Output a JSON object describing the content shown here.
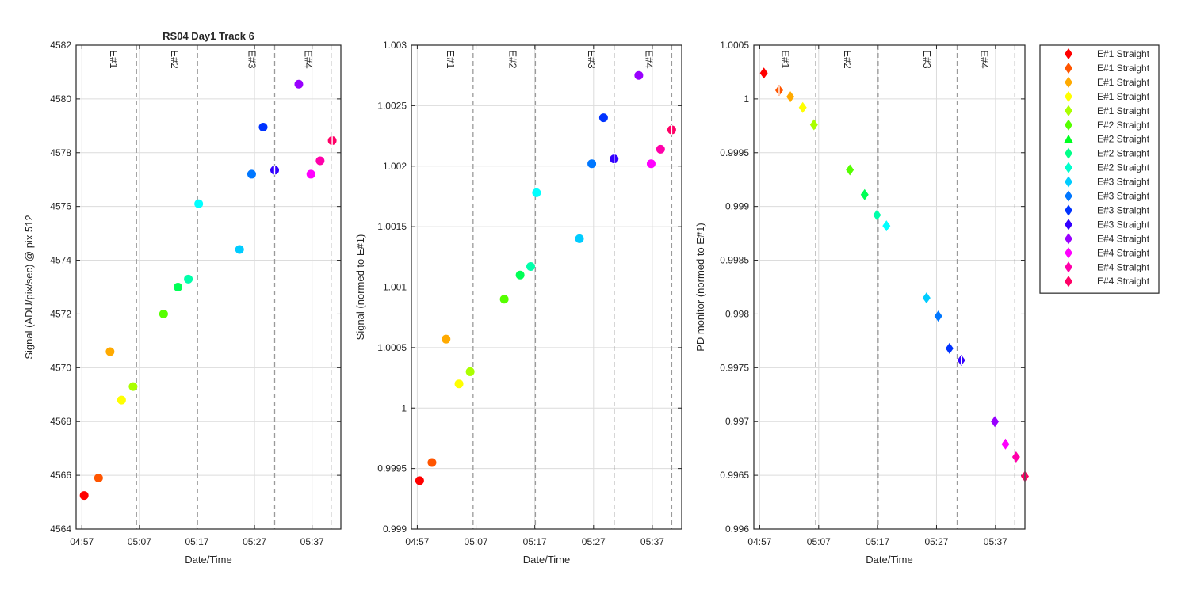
{
  "figure_title": "RS04 Day1 Track 6",
  "chart_data": [
    {
      "type": "scatter",
      "title": "RS04 Day1 Track 6",
      "xlabel": "Date/Time",
      "ylabel": "Signal (ADU/pix/sec) @ pix 512",
      "xlim": [
        "04:56",
        "05:42"
      ],
      "ylim": [
        4564,
        4582
      ],
      "xticks": [
        "04:57",
        "05:07",
        "05:17",
        "05:27",
        "05:37"
      ],
      "yticks": [
        "4564",
        "4566",
        "4568",
        "4570",
        "4572",
        "4574",
        "4576",
        "4578",
        "4580",
        "4582"
      ],
      "ytick_values": [
        4564,
        4566,
        4568,
        4570,
        4572,
        4574,
        4576,
        4578,
        4580,
        4582
      ],
      "grid": true,
      "marker": "circle",
      "event_lines": [
        {
          "label": "E#1",
          "time": "05:06.5",
          "line_time": "05:06.5"
        },
        {
          "label": "E#2",
          "time": "05:17.1",
          "line_time": "05:17.1"
        },
        {
          "label": "E#3",
          "time": "05:30.5",
          "line_time": "05:30.5"
        },
        {
          "label": "E#4",
          "time": "05:40.3",
          "line_time": "05:40.3"
        }
      ],
      "points": [
        {
          "x": "04:57.4",
          "y": 4565.25,
          "color": "#ff0000"
        },
        {
          "x": "04:59.9",
          "y": 4565.9,
          "color": "#ff5500"
        },
        {
          "x": "05:01.9",
          "y": 4570.6,
          "color": "#ffaa00"
        },
        {
          "x": "05:03.9",
          "y": 4568.8,
          "color": "#ffff00"
        },
        {
          "x": "05:05.9",
          "y": 4569.3,
          "color": "#aaff00"
        },
        {
          "x": "05:11.2",
          "y": 4572.0,
          "color": "#55ff00"
        },
        {
          "x": "05:13.7",
          "y": 4573.0,
          "color": "#00ff55"
        },
        {
          "x": "05:15.5",
          "y": 4573.3,
          "color": "#00ffaa"
        },
        {
          "x": "05:17.3",
          "y": 4576.1,
          "color": "#00ffff"
        },
        {
          "x": "05:24.4",
          "y": 4574.4,
          "color": "#00ccff"
        },
        {
          "x": "05:26.5",
          "y": 4577.2,
          "color": "#0077ff"
        },
        {
          "x": "05:28.5",
          "y": 4578.95,
          "color": "#0033ff"
        },
        {
          "x": "05:30.5",
          "y": 4577.35,
          "color": "#3300ff",
          "half": true
        },
        {
          "x": "05:34.7",
          "y": 4580.55,
          "color": "#9900ff"
        },
        {
          "x": "05:36.8",
          "y": 4577.2,
          "color": "#ff00ff"
        },
        {
          "x": "05:38.4",
          "y": 4577.7,
          "color": "#ff00aa"
        },
        {
          "x": "05:40.5",
          "y": 4578.45,
          "color": "#ff0066",
          "half": true
        }
      ]
    },
    {
      "type": "scatter",
      "title": "",
      "xlabel": "Date/Time",
      "ylabel": "Signal (normed to E#1)",
      "xlim": [
        "04:56",
        "05:42"
      ],
      "ylim": [
        0.999,
        1.003
      ],
      "xticks": [
        "04:57",
        "05:07",
        "05:17",
        "05:27",
        "05:37"
      ],
      "yticks": [
        "0.999",
        "0.9995",
        "1",
        "1.0005",
        "1.001",
        "1.0015",
        "1.002",
        "1.0025",
        "1.003"
      ],
      "ytick_values": [
        0.999,
        0.9995,
        1.0,
        1.0005,
        1.001,
        1.0015,
        1.002,
        1.0025,
        1.003
      ],
      "grid": true,
      "marker": "circle",
      "event_lines": [
        {
          "label": "E#1",
          "time": "05:06.5",
          "line_time": "05:06.5"
        },
        {
          "label": "E#2",
          "time": "05:17.1",
          "line_time": "05:17.1"
        },
        {
          "label": "E#3",
          "time": "05:30.5",
          "line_time": "05:30.5"
        },
        {
          "label": "E#4",
          "time": "05:40.3",
          "line_time": "05:40.3"
        }
      ],
      "points": [
        {
          "x": "04:57.4",
          "y": 0.9994,
          "color": "#ff0000"
        },
        {
          "x": "04:59.5",
          "y": 0.99955,
          "color": "#ff5500"
        },
        {
          "x": "05:01.9",
          "y": 1.00057,
          "color": "#ffaa00"
        },
        {
          "x": "05:04.1",
          "y": 1.0002,
          "color": "#ffff00"
        },
        {
          "x": "05:06.0",
          "y": 1.0003,
          "color": "#aaff00"
        },
        {
          "x": "05:11.8",
          "y": 1.0009,
          "color": "#55ff00"
        },
        {
          "x": "05:14.5",
          "y": 1.0011,
          "color": "#00ff55"
        },
        {
          "x": "05:16.3",
          "y": 1.00117,
          "color": "#00ffaa"
        },
        {
          "x": "05:17.3",
          "y": 1.00178,
          "color": "#00ffff"
        },
        {
          "x": "05:24.6",
          "y": 1.0014,
          "color": "#00ccff"
        },
        {
          "x": "05:26.7",
          "y": 1.00202,
          "color": "#0077ff"
        },
        {
          "x": "05:28.7",
          "y": 1.0024,
          "color": "#0033ff"
        },
        {
          "x": "05:30.5",
          "y": 1.00206,
          "color": "#3300ff",
          "half": true
        },
        {
          "x": "05:34.7",
          "y": 1.00275,
          "color": "#9900ff"
        },
        {
          "x": "05:36.8",
          "y": 1.00202,
          "color": "#ff00ff"
        },
        {
          "x": "05:38.4",
          "y": 1.00214,
          "color": "#ff00aa"
        },
        {
          "x": "05:40.3",
          "y": 1.0023,
          "color": "#ff0066",
          "half": true
        }
      ]
    },
    {
      "type": "scatter",
      "title": "",
      "xlabel": "Date/Time",
      "ylabel": "PD monitor (normed to E#1)",
      "xlim": [
        "04:56",
        "05:42"
      ],
      "ylim": [
        0.996,
        1.0005
      ],
      "xticks": [
        "04:57",
        "05:07",
        "05:17",
        "05:27",
        "05:37"
      ],
      "yticks": [
        "0.996",
        "0.9965",
        "0.997",
        "0.9975",
        "0.998",
        "0.9985",
        "0.999",
        "0.9995",
        "1",
        "1.0005"
      ],
      "ytick_values": [
        0.996,
        0.9965,
        0.997,
        0.9975,
        0.998,
        0.9985,
        0.999,
        0.9995,
        1.0,
        1.0005
      ],
      "grid": true,
      "marker": "diamond",
      "event_lines": [
        {
          "label": "E#1",
          "time": "05:05.2",
          "line_time": "05:06.5"
        },
        {
          "label": "E#2",
          "time": "05:15.8",
          "line_time": "05:17.1"
        },
        {
          "label": "E#3",
          "time": "05:29.2",
          "line_time": "05:30.5"
        },
        {
          "label": "E#4",
          "time": "05:39.0",
          "line_time": "05:40.3"
        }
      ],
      "points": [
        {
          "x": "04:57.7",
          "y": 1.00024,
          "color": "#ff0000"
        },
        {
          "x": "05:00.3",
          "y": 1.00008,
          "color": "#ff5500",
          "half": true
        },
        {
          "x": "05:02.2",
          "y": 1.00002,
          "color": "#ffaa00"
        },
        {
          "x": "05:04.3",
          "y": 0.99992,
          "color": "#ffff00"
        },
        {
          "x": "05:06.2",
          "y": 0.99976,
          "color": "#aaff00"
        },
        {
          "x": "05:12.3",
          "y": 0.99934,
          "color": "#55ff00"
        },
        {
          "x": "05:14.8",
          "y": 0.99911,
          "color": "#00ff55"
        },
        {
          "x": "05:16.9",
          "y": 0.99892,
          "color": "#00ffaa"
        },
        {
          "x": "05:18.5",
          "y": 0.99882,
          "color": "#00ffff"
        },
        {
          "x": "05:25.3",
          "y": 0.99815,
          "color": "#00ccff"
        },
        {
          "x": "05:27.3",
          "y": 0.99798,
          "color": "#0077ff"
        },
        {
          "x": "05:29.2",
          "y": 0.99768,
          "color": "#0033ff"
        },
        {
          "x": "05:31.2",
          "y": 0.99757,
          "color": "#3300ff",
          "half": true
        },
        {
          "x": "05:36.9",
          "y": 0.997,
          "color": "#9900ff"
        },
        {
          "x": "05:38.7",
          "y": 0.99679,
          "color": "#ff00ff"
        },
        {
          "x": "05:40.5",
          "y": 0.99667,
          "color": "#ff00aa"
        },
        {
          "x": "05:42.0",
          "y": 0.99649,
          "color": "#ff0066",
          "half": true
        }
      ]
    }
  ],
  "legend": {
    "placement": "right",
    "entries": [
      {
        "label": "E#1 Straight",
        "color": "#ff0000",
        "marker": "diamond"
      },
      {
        "label": "E#1 Straight",
        "color": "#ff5500",
        "marker": "diamond"
      },
      {
        "label": "E#1 Straight",
        "color": "#ffaa00",
        "marker": "diamond"
      },
      {
        "label": "E#1 Straight",
        "color": "#ffff00",
        "marker": "diamond"
      },
      {
        "label": "E#1 Straight",
        "color": "#aaff00",
        "marker": "diamond"
      },
      {
        "label": "E#2 Straight",
        "color": "#55ff00",
        "marker": "diamond"
      },
      {
        "label": "E#2 Straight",
        "color": "#00ff22",
        "marker": "triangle"
      },
      {
        "label": "E#2 Straight",
        "color": "#00ff88",
        "marker": "diamond"
      },
      {
        "label": "E#2 Straight",
        "color": "#00ffcc",
        "marker": "diamond"
      },
      {
        "label": "E#3 Straight",
        "color": "#00ccff",
        "marker": "diamond"
      },
      {
        "label": "E#3 Straight",
        "color": "#0077ff",
        "marker": "diamond"
      },
      {
        "label": "E#3 Straight",
        "color": "#0033ff",
        "marker": "diamond"
      },
      {
        "label": "E#3 Straight",
        "color": "#3300ff",
        "marker": "diamond"
      },
      {
        "label": "E#4 Straight",
        "color": "#9900ff",
        "marker": "diamond"
      },
      {
        "label": "E#4 Straight",
        "color": "#ff00ff",
        "marker": "diamond"
      },
      {
        "label": "E#4 Straight",
        "color": "#ff00aa",
        "marker": "diamond"
      },
      {
        "label": "E#4 Straight",
        "color": "#ff0066",
        "marker": "diamond"
      }
    ]
  }
}
